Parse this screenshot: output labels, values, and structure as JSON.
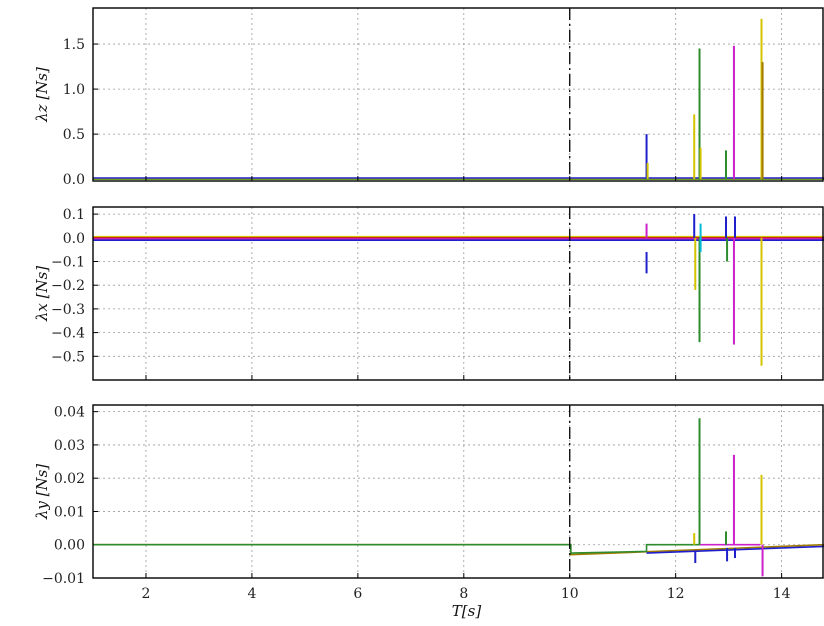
{
  "chart_data": [
    {
      "type": "line",
      "panel": "top",
      "ylabel": "λz [Ns]",
      "xlim": [
        1,
        14.8
      ],
      "ylim": [
        -0.02,
        1.9
      ],
      "yticks": [
        0.0,
        0.5,
        1.0,
        1.5
      ],
      "ytick_labels": [
        "0.0",
        "0.5",
        "1.0",
        "1.5"
      ],
      "grid": true,
      "event_line_x": 10,
      "baseline": {
        "y": 0.0,
        "colors": [
          "#2e8b2e",
          "#d4c400",
          "#1f1fcc"
        ]
      },
      "spikes": [
        {
          "x": 11.45,
          "y0": 0.0,
          "y1": 0.5,
          "color": "#1f1fcc"
        },
        {
          "x": 11.47,
          "y0": 0.0,
          "y1": 0.18,
          "color": "#d4c400"
        },
        {
          "x": 12.35,
          "y0": 0.0,
          "y1": 0.72,
          "color": "#d4c400"
        },
        {
          "x": 12.45,
          "y0": 0.0,
          "y1": 1.45,
          "color": "#2e8b2e"
        },
        {
          "x": 12.47,
          "y0": 0.0,
          "y1": 0.35,
          "color": "#d4c400"
        },
        {
          "x": 12.95,
          "y0": 0.0,
          "y1": 0.32,
          "color": "#2e8b2e"
        },
        {
          "x": 13.1,
          "y0": 0.0,
          "y1": 1.48,
          "color": "#cc22cc"
        },
        {
          "x": 13.62,
          "y0": 0.0,
          "y1": 1.78,
          "color": "#d4c400"
        },
        {
          "x": 13.64,
          "y0": 0.0,
          "y1": 1.3,
          "color": "#a07a00"
        }
      ]
    },
    {
      "type": "line",
      "panel": "middle",
      "ylabel": "λx [Ns]",
      "xlim": [
        1,
        14.8
      ],
      "ylim": [
        -0.6,
        0.13
      ],
      "yticks": [
        0.1,
        0.0,
        -0.1,
        -0.2,
        -0.3,
        -0.4,
        -0.5
      ],
      "ytick_labels": [
        "0.1",
        "0.0",
        "−0.1",
        "−0.2",
        "−0.3",
        "−0.4",
        "−0.5"
      ],
      "grid": true,
      "event_line_x": 10,
      "baselines": [
        {
          "y": 0.005,
          "color": "#d4c400"
        },
        {
          "y": 0.0,
          "color": "#cc2222"
        },
        {
          "y": -0.005,
          "color": "#cc22cc"
        },
        {
          "y": -0.01,
          "color": "#1f1fcc"
        }
      ],
      "spikes": [
        {
          "x": 11.45,
          "y0": 0.0,
          "y1": 0.06,
          "color": "#cc22cc"
        },
        {
          "x": 11.45,
          "y0": -0.06,
          "y1": -0.15,
          "color": "#1f1fcc"
        },
        {
          "x": 12.35,
          "y0": 0.0,
          "y1": 0.1,
          "color": "#1f1fcc"
        },
        {
          "x": 12.37,
          "y0": 0.0,
          "y1": -0.22,
          "color": "#d4c400"
        },
        {
          "x": 12.45,
          "y0": 0.0,
          "y1": -0.44,
          "color": "#2e8b2e"
        },
        {
          "x": 12.47,
          "y0": 0.06,
          "y1": -0.06,
          "color": "#00bcd4"
        },
        {
          "x": 12.95,
          "y0": 0.0,
          "y1": 0.09,
          "color": "#1f1fcc"
        },
        {
          "x": 12.97,
          "y0": 0.0,
          "y1": -0.1,
          "color": "#2e8b2e"
        },
        {
          "x": 13.1,
          "y0": 0.0,
          "y1": -0.45,
          "color": "#cc22cc"
        },
        {
          "x": 13.12,
          "y0": 0.0,
          "y1": 0.09,
          "color": "#1f1fcc"
        },
        {
          "x": 13.62,
          "y0": 0.0,
          "y1": -0.54,
          "color": "#d4c400"
        }
      ]
    },
    {
      "type": "line",
      "panel": "bottom",
      "ylabel": "λy [Ns]",
      "xlabel": "T[s]",
      "xlim": [
        1,
        14.8
      ],
      "ylim": [
        -0.01,
        0.042
      ],
      "yticks": [
        0.04,
        0.03,
        0.02,
        0.01,
        0.0,
        -0.01
      ],
      "ytick_labels": [
        "0.04",
        "0.03",
        "0.02",
        "0.01",
        "0.00",
        "−0.01"
      ],
      "xticks": [
        2,
        4,
        6,
        8,
        10,
        12,
        14
      ],
      "xtick_labels": [
        "2",
        "4",
        "6",
        "8",
        "10",
        "12",
        "14"
      ],
      "grid": true,
      "event_line_x": 10,
      "traces": [
        {
          "color": "#a07a00",
          "points": [
            [
              1,
              0.0
            ],
            [
              10.02,
              0.0
            ],
            [
              10.02,
              -0.003
            ],
            [
              14.8,
              0.0
            ]
          ]
        },
        {
          "color": "#2e8b2e",
          "points": [
            [
              1,
              0.0
            ],
            [
              10.02,
              0.0
            ],
            [
              10.02,
              -0.0025
            ],
            [
              11.45,
              -0.002
            ],
            [
              11.45,
              0.0
            ],
            [
              12.45,
              0.0
            ]
          ]
        },
        {
          "color": "#1f1fcc",
          "points": [
            [
              11.45,
              -0.0025
            ],
            [
              14.8,
              -0.0005
            ]
          ]
        },
        {
          "color": "#cc22cc",
          "points": [
            [
              12.45,
              0.0
            ],
            [
              13.6,
              0.0
            ]
          ]
        }
      ],
      "spikes": [
        {
          "x": 12.35,
          "y0": 0.0,
          "y1": 0.0035,
          "color": "#d4c400"
        },
        {
          "x": 12.37,
          "y0": -0.002,
          "y1": -0.0055,
          "color": "#1f1fcc"
        },
        {
          "x": 12.45,
          "y0": 0.0,
          "y1": 0.038,
          "color": "#2e8b2e"
        },
        {
          "x": 12.95,
          "y0": 0.0,
          "y1": 0.004,
          "color": "#2e8b2e"
        },
        {
          "x": 12.97,
          "y0": -0.001,
          "y1": -0.005,
          "color": "#1f1fcc"
        },
        {
          "x": 13.1,
          "y0": 0.0,
          "y1": 0.027,
          "color": "#cc22cc"
        },
        {
          "x": 13.12,
          "y0": -0.001,
          "y1": -0.004,
          "color": "#1f1fcc"
        },
        {
          "x": 13.62,
          "y0": 0.0,
          "y1": 0.021,
          "color": "#d4c400"
        },
        {
          "x": 13.64,
          "y0": 0.0,
          "y1": -0.0095,
          "color": "#cc22cc"
        }
      ]
    }
  ]
}
